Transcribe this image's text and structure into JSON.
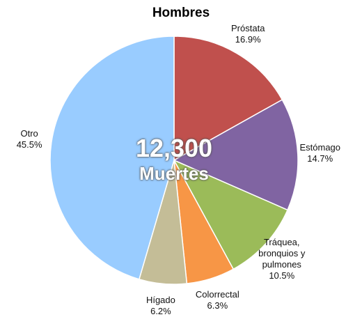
{
  "chart_data": {
    "type": "pie",
    "title": "Hombres",
    "annotations": [
      "12,300",
      "Muertes"
    ],
    "categories": [
      "Próstata",
      "Estómago",
      "Tráquea, bronquios y pulmones",
      "Colorrectal",
      "Hígado",
      "Otro"
    ],
    "values": [
      16.9,
      14.7,
      10.5,
      6.3,
      6.2,
      45.5
    ],
    "value_labels": [
      "16.9%",
      "14.7%",
      "10.5%",
      "6.3%",
      "6.2%",
      "45.5%"
    ],
    "colors": [
      "#c0504d",
      "#8064a2",
      "#9bbb59",
      "#f79646",
      "#c4bd97",
      "#99ccff"
    ]
  }
}
